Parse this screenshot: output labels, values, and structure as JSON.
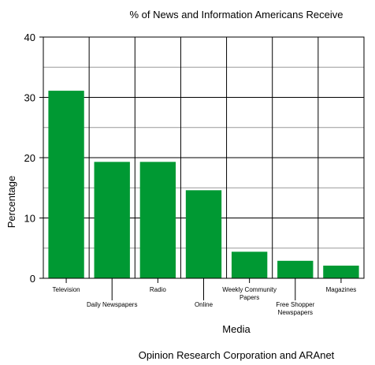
{
  "chart_data": {
    "type": "bar",
    "title": "% of News and Information Americans Receive",
    "xlabel": "Media",
    "ylabel": "Percentage",
    "source": "Opinion Research Corporation and ARAnet",
    "ylim": [
      0,
      40
    ],
    "yticks": [
      0,
      10,
      20,
      30,
      40
    ],
    "grid": true,
    "bar_color": "#009933",
    "categories": [
      [
        "Television"
      ],
      [
        "Daily Newspapers"
      ],
      [
        "Radio"
      ],
      [
        "Online"
      ],
      [
        "Weekly Community",
        "Papers"
      ],
      [
        "Free Shopper",
        "Newspapers"
      ],
      [
        "Magazines"
      ]
    ],
    "values": [
      31.1,
      19.3,
      19.3,
      14.6,
      4.4,
      2.9,
      2.1
    ]
  }
}
